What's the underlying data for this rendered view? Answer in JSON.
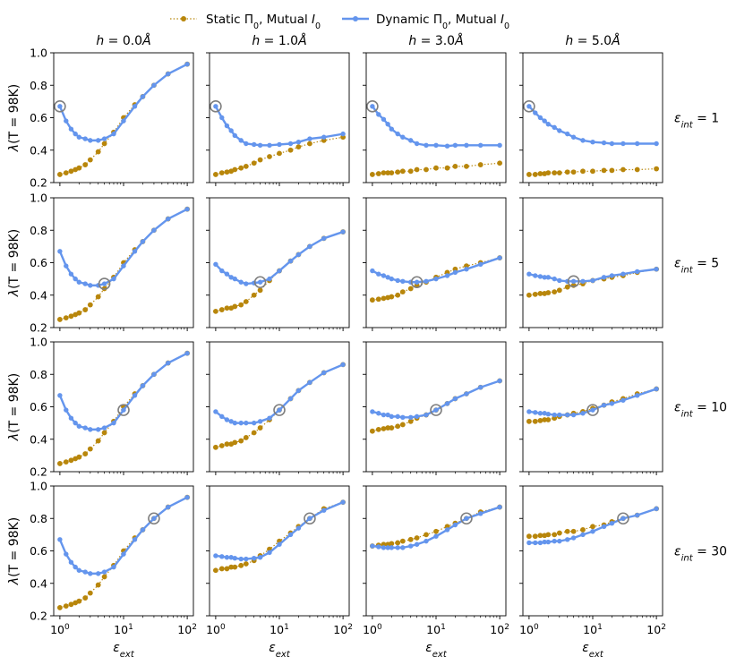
{
  "chart_data": {
    "type": "line",
    "layout": "4x4 grid of subplots, shared axes",
    "legend": {
      "placement": "top-center",
      "entries": [
        {
          "key": "static",
          "prefix": "Static Π",
          "sub": "0",
          "suffix": ", Mutual ",
          "ital": "I",
          "sub2": "0",
          "color": "#b8860b",
          "style": "dotted line with dots"
        },
        {
          "key": "dynamic",
          "prefix": "Dynamic Π",
          "sub": "0",
          "suffix": ", Mutual ",
          "ital": "I",
          "sub2": "0",
          "color": "#6495ed",
          "style": "solid line with dots"
        }
      ]
    },
    "column_titles": [
      {
        "var": "h",
        "value": "0.0",
        "unit": "Å"
      },
      {
        "var": "h",
        "value": "1.0",
        "unit": "Å"
      },
      {
        "var": "h",
        "value": "3.0",
        "unit": "Å"
      },
      {
        "var": "h",
        "value": "5.0",
        "unit": "Å"
      }
    ],
    "row_titles": [
      {
        "sym": "ε",
        "sub": "int",
        "value": "1"
      },
      {
        "sym": "ε",
        "sub": "int",
        "value": "5"
      },
      {
        "sym": "ε",
        "sub": "int",
        "value": "10"
      },
      {
        "sym": "ε",
        "sub": "int",
        "value": "30"
      }
    ],
    "ylabel": {
      "sym": "λ",
      "paren": "(T = 98K)"
    },
    "xlabel": {
      "sym": "ε",
      "sub": "ext"
    },
    "xscale": "log",
    "xlim": [
      0.8,
      125
    ],
    "ylim": [
      0.2,
      1.0
    ],
    "yticks": [
      "0.2",
      "0.4",
      "0.6",
      "0.8",
      "1.0"
    ],
    "xticks": [
      {
        "base": "10",
        "exp": "0"
      },
      {
        "base": "10",
        "exp": "1"
      },
      {
        "base": "10",
        "exp": "2"
      }
    ],
    "x": [
      1,
      1.25,
      1.5,
      1.75,
      2,
      2.5,
      3,
      4,
      5,
      7,
      10,
      15,
      20,
      30,
      50,
      100
    ],
    "panels": [
      {
        "row": 0,
        "col": 0,
        "static": [
          0.25,
          0.26,
          0.27,
          0.28,
          0.29,
          0.31,
          0.34,
          0.39,
          0.44,
          0.51,
          0.6,
          0.68,
          0.73,
          0.8,
          0.87,
          0.93
        ],
        "dynamic": [
          0.67,
          0.58,
          0.53,
          0.5,
          0.48,
          0.47,
          0.46,
          0.46,
          0.47,
          0.5,
          0.58,
          0.67,
          0.73,
          0.8,
          0.87,
          0.93
        ],
        "marker_x": 1
      },
      {
        "row": 0,
        "col": 1,
        "static": [
          0.25,
          0.26,
          0.265,
          0.27,
          0.28,
          0.29,
          0.3,
          0.32,
          0.34,
          0.36,
          0.38,
          0.4,
          0.42,
          0.44,
          0.46,
          0.48
        ],
        "dynamic": [
          0.67,
          0.6,
          0.55,
          0.52,
          0.49,
          0.46,
          0.44,
          0.435,
          0.43,
          0.43,
          0.435,
          0.44,
          0.45,
          0.47,
          0.48,
          0.5
        ],
        "marker_x": 1
      },
      {
        "row": 0,
        "col": 2,
        "static": [
          0.25,
          0.255,
          0.26,
          0.26,
          0.26,
          0.265,
          0.27,
          0.27,
          0.28,
          0.28,
          0.29,
          0.29,
          0.3,
          0.3,
          0.31,
          0.32
        ],
        "dynamic": [
          0.67,
          0.62,
          0.59,
          0.56,
          0.53,
          0.5,
          0.48,
          0.46,
          0.44,
          0.43,
          0.43,
          0.425,
          0.43,
          0.43,
          0.43,
          0.43
        ],
        "marker_x": 1
      },
      {
        "row": 0,
        "col": 3,
        "static": [
          0.25,
          0.25,
          0.255,
          0.255,
          0.26,
          0.26,
          0.26,
          0.265,
          0.265,
          0.27,
          0.27,
          0.275,
          0.275,
          0.28,
          0.28,
          0.285
        ],
        "dynamic": [
          0.67,
          0.63,
          0.6,
          0.58,
          0.56,
          0.54,
          0.52,
          0.5,
          0.48,
          0.46,
          0.45,
          0.445,
          0.44,
          0.44,
          0.44,
          0.44
        ],
        "marker_x": 1
      },
      {
        "row": 1,
        "col": 0,
        "static": [
          0.25,
          0.26,
          0.27,
          0.28,
          0.29,
          0.31,
          0.34,
          0.39,
          0.44,
          0.51,
          0.6,
          0.68,
          0.73,
          0.8,
          0.87,
          0.93
        ],
        "dynamic": [
          0.67,
          0.58,
          0.53,
          0.5,
          0.48,
          0.47,
          0.46,
          0.46,
          0.47,
          0.5,
          0.58,
          0.67,
          0.73,
          0.8,
          0.87,
          0.93
        ],
        "marker_x": 5
      },
      {
        "row": 1,
        "col": 1,
        "static": [
          0.3,
          0.31,
          0.32,
          0.32,
          0.33,
          0.34,
          0.36,
          0.4,
          0.43,
          0.49,
          0.55,
          0.61,
          0.65,
          0.7,
          0.75,
          0.79
        ],
        "dynamic": [
          0.59,
          0.55,
          0.53,
          0.51,
          0.5,
          0.48,
          0.47,
          0.475,
          0.48,
          0.5,
          0.55,
          0.61,
          0.65,
          0.7,
          0.75,
          0.79
        ],
        "marker_x": 5
      },
      {
        "row": 1,
        "col": 2,
        "static": [
          0.37,
          0.375,
          0.38,
          0.385,
          0.39,
          0.4,
          0.42,
          0.44,
          0.46,
          0.48,
          0.51,
          0.54,
          0.56,
          0.58,
          0.6,
          0.63
        ],
        "dynamic": [
          0.55,
          0.53,
          0.52,
          0.51,
          0.5,
          0.49,
          0.485,
          0.48,
          0.48,
          0.485,
          0.5,
          0.52,
          0.54,
          0.56,
          0.59,
          0.63
        ],
        "marker_x": 5
      },
      {
        "row": 1,
        "col": 3,
        "static": [
          0.4,
          0.405,
          0.41,
          0.41,
          0.415,
          0.42,
          0.43,
          0.45,
          0.46,
          0.47,
          0.49,
          0.5,
          0.51,
          0.52,
          0.54,
          0.56
        ],
        "dynamic": [
          0.53,
          0.52,
          0.515,
          0.51,
          0.51,
          0.5,
          0.49,
          0.485,
          0.485,
          0.485,
          0.49,
          0.51,
          0.52,
          0.53,
          0.545,
          0.56
        ],
        "marker_x": 5
      },
      {
        "row": 2,
        "col": 0,
        "static": [
          0.25,
          0.26,
          0.27,
          0.28,
          0.29,
          0.31,
          0.34,
          0.39,
          0.44,
          0.51,
          0.6,
          0.68,
          0.73,
          0.8,
          0.87,
          0.93
        ],
        "dynamic": [
          0.67,
          0.58,
          0.53,
          0.5,
          0.48,
          0.47,
          0.46,
          0.46,
          0.47,
          0.5,
          0.58,
          0.67,
          0.73,
          0.8,
          0.87,
          0.93
        ],
        "marker_x": 10
      },
      {
        "row": 2,
        "col": 1,
        "static": [
          0.35,
          0.36,
          0.37,
          0.37,
          0.38,
          0.39,
          0.41,
          0.44,
          0.47,
          0.52,
          0.58,
          0.65,
          0.7,
          0.75,
          0.81,
          0.86
        ],
        "dynamic": [
          0.57,
          0.54,
          0.52,
          0.51,
          0.5,
          0.5,
          0.5,
          0.5,
          0.51,
          0.53,
          0.58,
          0.65,
          0.7,
          0.75,
          0.81,
          0.86
        ],
        "marker_x": 10
      },
      {
        "row": 2,
        "col": 2,
        "static": [
          0.45,
          0.46,
          0.465,
          0.47,
          0.47,
          0.48,
          0.49,
          0.51,
          0.53,
          0.55,
          0.58,
          0.62,
          0.65,
          0.68,
          0.72,
          0.76
        ],
        "dynamic": [
          0.57,
          0.56,
          0.55,
          0.55,
          0.54,
          0.54,
          0.535,
          0.535,
          0.54,
          0.55,
          0.58,
          0.62,
          0.65,
          0.68,
          0.72,
          0.76
        ],
        "marker_x": 10
      },
      {
        "row": 2,
        "col": 3,
        "static": [
          0.51,
          0.51,
          0.515,
          0.52,
          0.52,
          0.53,
          0.54,
          0.55,
          0.56,
          0.57,
          0.59,
          0.61,
          0.63,
          0.65,
          0.68,
          0.71
        ],
        "dynamic": [
          0.57,
          0.565,
          0.56,
          0.56,
          0.555,
          0.55,
          0.55,
          0.55,
          0.55,
          0.56,
          0.58,
          0.61,
          0.62,
          0.64,
          0.67,
          0.71
        ],
        "marker_x": 10
      },
      {
        "row": 3,
        "col": 0,
        "static": [
          0.25,
          0.26,
          0.27,
          0.28,
          0.29,
          0.31,
          0.34,
          0.39,
          0.44,
          0.51,
          0.6,
          0.68,
          0.73,
          0.8,
          0.87,
          0.93
        ],
        "dynamic": [
          0.67,
          0.58,
          0.53,
          0.5,
          0.48,
          0.47,
          0.46,
          0.46,
          0.47,
          0.5,
          0.58,
          0.67,
          0.73,
          0.8,
          0.87,
          0.93
        ],
        "marker_x": 30
      },
      {
        "row": 3,
        "col": 1,
        "static": [
          0.48,
          0.49,
          0.49,
          0.5,
          0.5,
          0.51,
          0.52,
          0.54,
          0.57,
          0.61,
          0.66,
          0.71,
          0.75,
          0.8,
          0.86,
          0.9
        ],
        "dynamic": [
          0.57,
          0.565,
          0.56,
          0.56,
          0.555,
          0.55,
          0.55,
          0.555,
          0.56,
          0.59,
          0.64,
          0.7,
          0.74,
          0.8,
          0.85,
          0.9
        ],
        "marker_x": 30
      },
      {
        "row": 3,
        "col": 2,
        "static": [
          0.63,
          0.635,
          0.64,
          0.64,
          0.645,
          0.65,
          0.66,
          0.67,
          0.68,
          0.7,
          0.72,
          0.75,
          0.77,
          0.8,
          0.84,
          0.87
        ],
        "dynamic": [
          0.63,
          0.625,
          0.62,
          0.62,
          0.62,
          0.62,
          0.62,
          0.63,
          0.64,
          0.66,
          0.69,
          0.73,
          0.76,
          0.8,
          0.83,
          0.87
        ],
        "marker_x": 30
      },
      {
        "row": 3,
        "col": 3,
        "static": [
          0.69,
          0.69,
          0.695,
          0.695,
          0.7,
          0.7,
          0.71,
          0.72,
          0.72,
          0.73,
          0.75,
          0.76,
          0.78,
          0.8,
          0.82,
          0.86
        ],
        "dynamic": [
          0.65,
          0.65,
          0.65,
          0.655,
          0.655,
          0.66,
          0.66,
          0.67,
          0.68,
          0.7,
          0.72,
          0.75,
          0.77,
          0.8,
          0.82,
          0.86
        ],
        "marker_x": 30
      }
    ]
  }
}
